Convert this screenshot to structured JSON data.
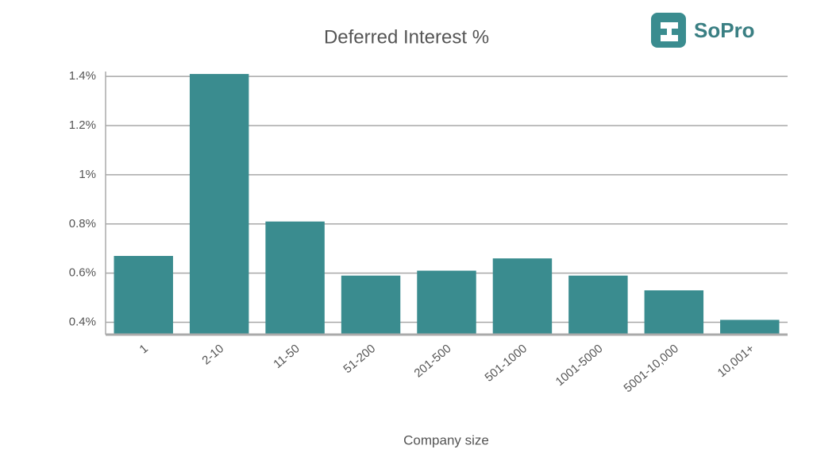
{
  "chart_data": {
    "type": "bar",
    "title": "Deferred Interest %",
    "x_label": "Company size",
    "categories": [
      "1",
      "2-10",
      "11-50",
      "51-200",
      "201-500",
      "501-1000",
      "1001-5000",
      "5001-10,000",
      "10,001+"
    ],
    "values": [
      0.67,
      1.41,
      0.81,
      0.59,
      0.61,
      0.66,
      0.59,
      0.53,
      0.41
    ],
    "color": "#3a8c8f",
    "ylim": [
      0.35,
      1.42
    ],
    "yticks": [
      {
        "value": 0.4,
        "label": "0.4%"
      },
      {
        "value": 0.6,
        "label": "0.6%"
      },
      {
        "value": 0.8,
        "label": "0.8%"
      },
      {
        "value": 1,
        "label": "1%"
      },
      {
        "value": 1.2,
        "label": "1.2%"
      },
      {
        "value": 1.4,
        "label": "1.4%"
      }
    ],
    "grid": true
  },
  "logo": "SoPro"
}
